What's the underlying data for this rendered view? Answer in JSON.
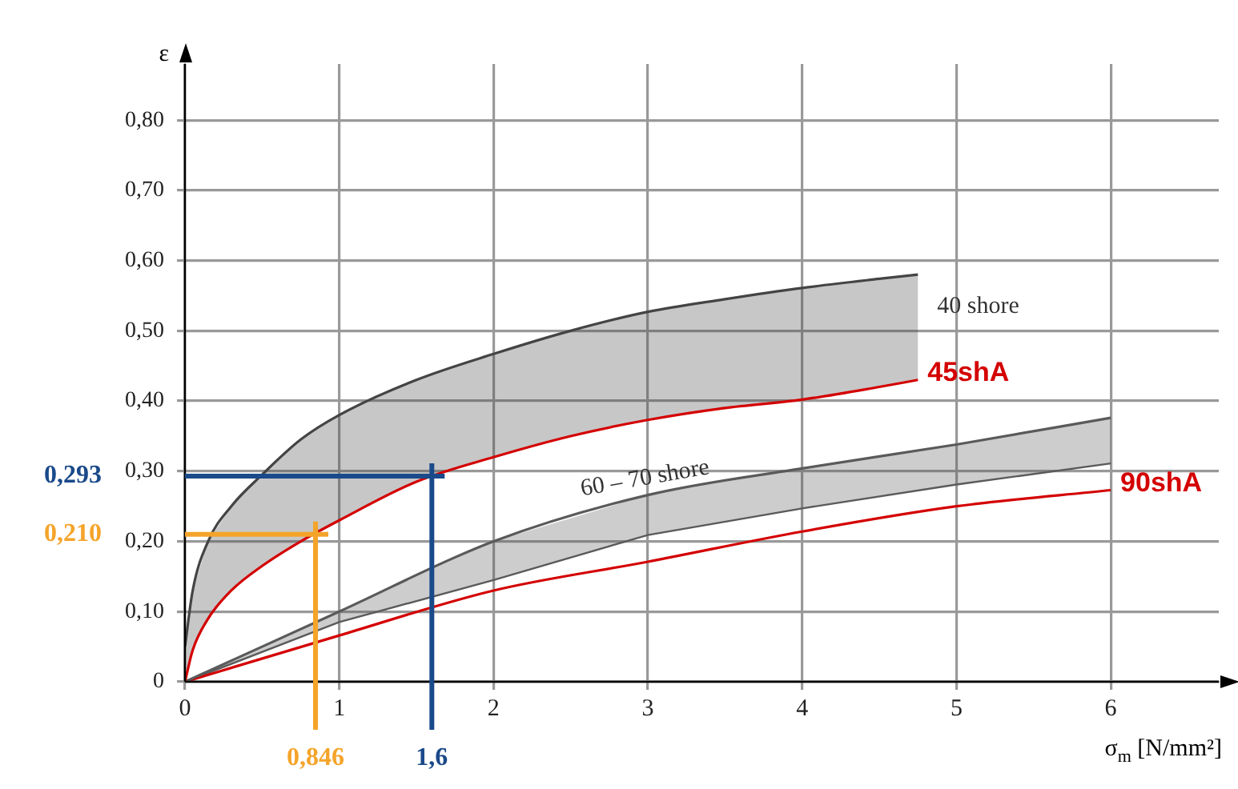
{
  "chart_data": {
    "type": "line",
    "xlabel": "σ$_{m}$ [N/mm²]",
    "ylabel": "ε",
    "xlim": [
      0,
      6.7
    ],
    "ylim": [
      0,
      0.88
    ],
    "xticks": [
      0,
      1,
      2,
      3,
      4,
      5,
      6
    ],
    "yticks": [
      0,
      {
        "value": 0.1,
        "label": "0,10"
      },
      {
        "value": 0.2,
        "label": "0,20"
      },
      {
        "value": 0.3,
        "label": "0,30"
      },
      {
        "value": 0.4,
        "label": "0,40"
      },
      {
        "value": 0.5,
        "label": "0,50"
      },
      {
        "value": 0.6,
        "label": "0,60"
      },
      {
        "value": 0.7,
        "label": "0,70"
      },
      {
        "value": 0.8,
        "label": "0,80"
      }
    ],
    "grid": true,
    "legend": false,
    "marker": "none",
    "line_style": "solid",
    "series": [
      {
        "name": "40 shore",
        "color": "#444444",
        "x": [
          0,
          0.05,
          0.15,
          0.3,
          0.5,
          0.75,
          1,
          1.5,
          2,
          2.5,
          3,
          3.5,
          4,
          4.5,
          4.75
        ],
        "values": [
          0.05,
          0.13,
          0.2,
          0.25,
          0.295,
          0.345,
          0.38,
          0.43,
          0.467,
          0.5,
          0.527,
          0.545,
          0.561,
          0.574,
          0.58
        ],
        "lower": [
          0,
          0.045,
          0.09,
          0.13,
          0.165,
          0.2,
          0.23,
          0.285,
          0.32,
          0.35,
          0.373,
          0.39,
          0.402,
          0.42,
          0.43
        ],
        "upper": [
          0.05,
          0.13,
          0.2,
          0.25,
          0.295,
          0.345,
          0.38,
          0.43,
          0.467,
          0.5,
          0.527,
          0.545,
          0.561,
          0.574,
          0.58
        ]
      },
      {
        "name": "45shA",
        "color": "#d40000",
        "x": [
          0,
          0.05,
          0.15,
          0.3,
          0.5,
          0.75,
          1,
          1.5,
          2,
          2.5,
          3,
          3.5,
          4,
          4.5,
          4.75
        ],
        "values": [
          0,
          0.045,
          0.09,
          0.13,
          0.165,
          0.2,
          0.23,
          0.285,
          0.32,
          0.35,
          0.373,
          0.39,
          0.402,
          0.42,
          0.43
        ]
      },
      {
        "name": "60 – 70 shore",
        "color": "#5a5a5a",
        "x": [
          0,
          1,
          2,
          3,
          4,
          5,
          6
        ],
        "values": [
          0,
          0.1,
          0.2,
          0.266,
          0.304,
          0.338,
          0.376
        ],
        "lower": [
          0,
          0.085,
          0.145,
          0.209,
          0.247,
          0.281,
          0.311
        ],
        "upper": [
          0,
          0.1,
          0.2,
          0.266,
          0.304,
          0.338,
          0.376
        ]
      },
      {
        "name": "90shA",
        "color": "#d40000",
        "x": [
          0,
          1,
          2,
          3,
          4,
          5,
          6
        ],
        "values": [
          0,
          0.066,
          0.13,
          0.171,
          0.214,
          0.25,
          0.273
        ]
      }
    ],
    "ref_lines": [
      {
        "axis": "y",
        "value": 0.293,
        "label": "0,293",
        "color": "#1a4a8a"
      },
      {
        "axis": "x",
        "value": 1.6,
        "label": "1,6",
        "color": "#1a4a8a"
      },
      {
        "axis": "y",
        "value": 0.21,
        "label": "0,210",
        "color": "#f5a42a"
      },
      {
        "axis": "x",
        "value": 0.846,
        "label": "0,846",
        "color": "#f5a42a"
      }
    ]
  }
}
